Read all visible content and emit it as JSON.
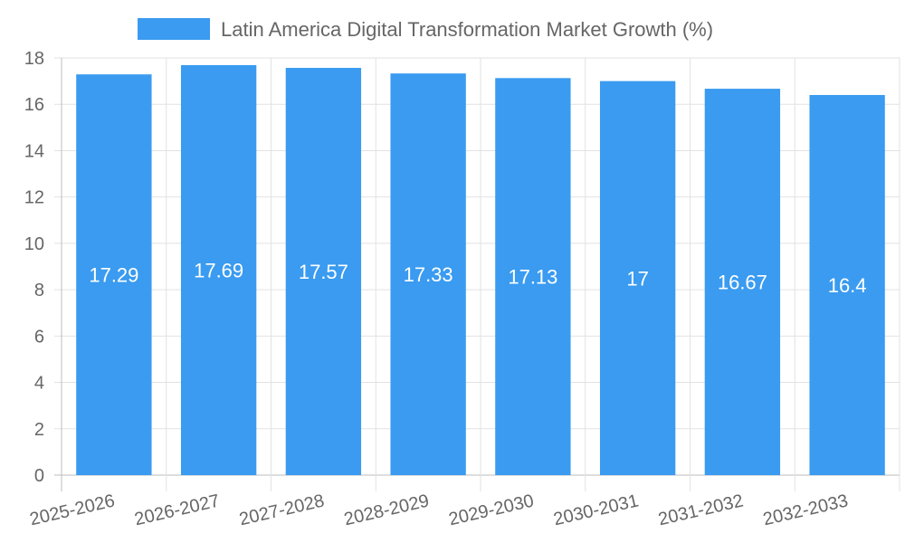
{
  "chart_data": {
    "type": "bar",
    "categories": [
      "2025-2026",
      "2026-2027",
      "2027-2028",
      "2028-2029",
      "2029-2030",
      "2030-2031",
      "2031-2032",
      "2032-2033"
    ],
    "series": [
      {
        "name": "Latin America Digital Transformation Market Growth (%)",
        "values": [
          17.29,
          17.69,
          17.57,
          17.33,
          17.13,
          17,
          16.67,
          16.4
        ],
        "value_labels": [
          "17.29",
          "17.69",
          "17.57",
          "17.33",
          "17.13",
          "17",
          "16.67",
          "16.4"
        ],
        "color": "#3a9bf0"
      }
    ],
    "ylim": [
      0,
      18
    ],
    "yticks": [
      0,
      2,
      4,
      6,
      8,
      10,
      12,
      14,
      16,
      18
    ],
    "grid": true,
    "legend_position": "top-center"
  }
}
